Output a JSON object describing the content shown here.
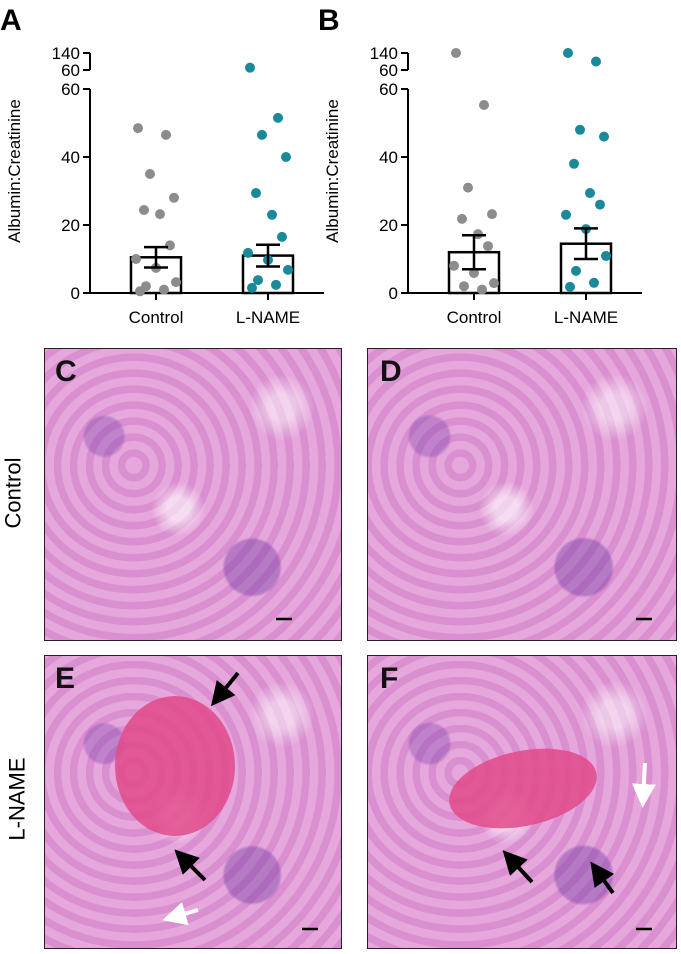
{
  "chart_data": [
    {
      "type": "bar",
      "panel": "A",
      "ylabel": "Albumin:Creatinine",
      "categories": [
        "Control",
        "L-NAME"
      ],
      "values": [
        10.5,
        11
      ],
      "errors": [
        3,
        3.2
      ],
      "colors": [
        "#8c8c8c",
        "#1a8a9a"
      ],
      "points": [
        [
          48.5,
          46.5,
          35,
          28,
          24.4,
          23.2,
          14,
          10,
          7.4,
          3.2,
          2,
          1,
          0.5
        ],
        [
          71,
          51.5,
          46.5,
          40,
          29.4,
          23,
          16.5,
          11.8,
          9.7,
          6.8,
          3.8,
          2.4,
          1.5
        ]
      ],
      "ylim": [
        0,
        60
      ],
      "yticks": [
        0,
        20,
        40,
        60
      ],
      "break_ylim": [
        60,
        140
      ],
      "break_yticks": [
        60,
        140
      ]
    },
    {
      "type": "bar",
      "panel": "B",
      "ylabel": "Albumin:Creatinine",
      "categories": [
        "Control",
        "L-NAME"
      ],
      "values": [
        12,
        14.5
      ],
      "errors": [
        5,
        4.5
      ],
      "colors": [
        "#8c8c8c",
        "#1a8a9a"
      ],
      "points": [
        [
          140,
          55.3,
          31,
          23.2,
          21.8,
          17.3,
          13.8,
          8,
          5.9,
          2.9,
          2,
          1
        ],
        [
          140,
          100,
          48,
          46,
          38,
          29.4,
          26,
          23,
          18.8,
          10.9,
          6.5,
          3,
          1.8
        ]
      ],
      "ylim": [
        0,
        60
      ],
      "yticks": [
        0,
        20,
        40,
        60
      ],
      "break_ylim": [
        60,
        140
      ],
      "break_yticks": [
        60,
        140
      ]
    }
  ],
  "images": [
    {
      "panel": "C"
    },
    {
      "panel": "D"
    },
    {
      "panel": "E"
    },
    {
      "panel": "F"
    }
  ],
  "row_labels": [
    "Control",
    "L-NAME"
  ]
}
